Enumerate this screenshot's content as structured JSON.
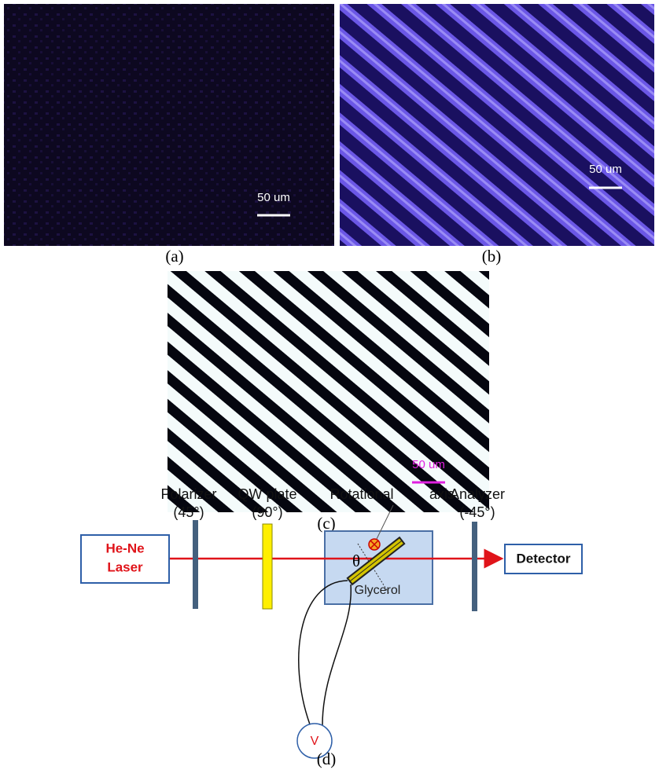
{
  "panels": [
    {
      "label": "(a)",
      "scale_bar": "50 um"
    },
    {
      "label": "(b)",
      "scale_bar": "50 um"
    },
    {
      "label": "(c)",
      "scale_bar": "50 um"
    }
  ],
  "diagram": {
    "label": "(d)",
    "laser": [
      "He-Ne",
      "Laser"
    ],
    "polarizer": [
      "Polarizer",
      "(45°)"
    ],
    "qw_plate": [
      "QW plate",
      "(90°)"
    ],
    "rotational_axis": [
      "Rotational",
      "axis"
    ],
    "analyzer": [
      "Analyzer",
      "(-45°)"
    ],
    "angle": "θ",
    "medium": "Glycerol",
    "detector": "Detector",
    "voltage": "V"
  }
}
